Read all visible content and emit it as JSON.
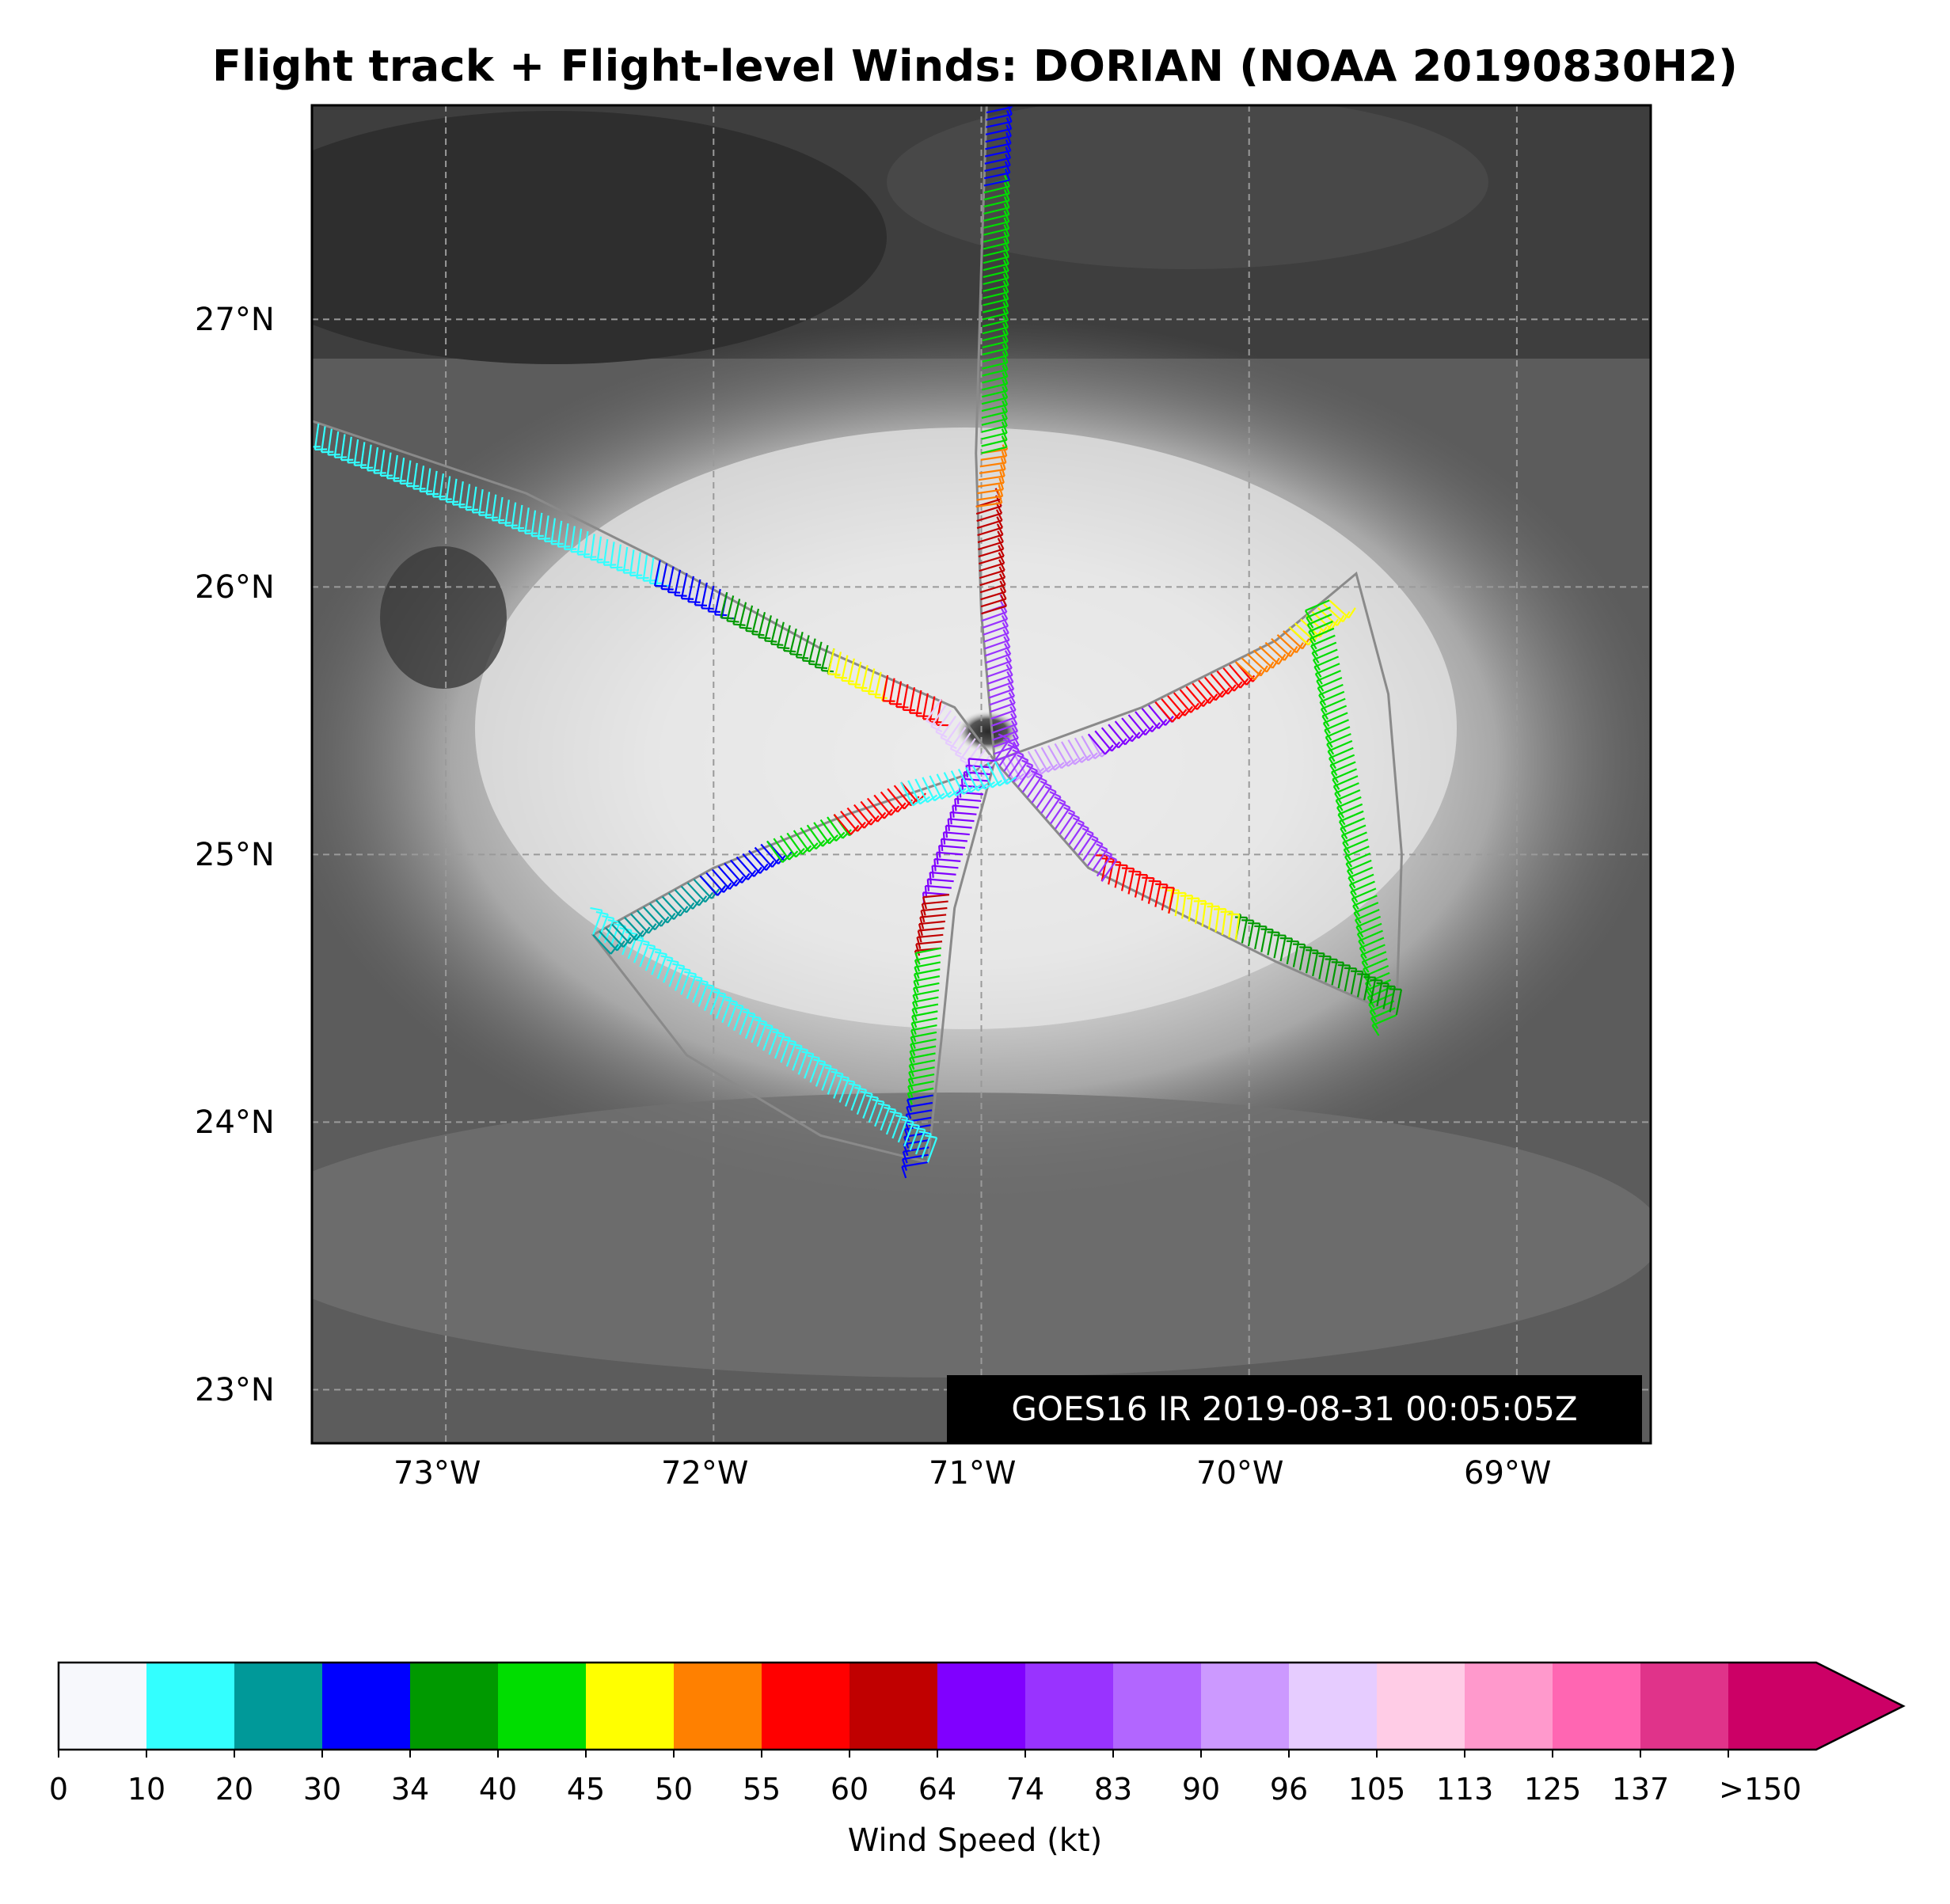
{
  "title": "Flight track + Flight-level Winds: DORIAN (NOAA 20190830H2)",
  "map": {
    "lon_range": [
      -73.5,
      -68.5
    ],
    "lat_range": [
      22.8,
      27.8
    ],
    "lat_labels": [
      "27°N",
      "26°N",
      "25°N",
      "24°N",
      "23°N"
    ],
    "lon_labels": [
      "73°W",
      "72°W",
      "71°W",
      "70°W",
      "69°W"
    ],
    "gridlines": "dashed",
    "background": "grayscale infrared satellite image",
    "storm_center": {
      "lon": -70.95,
      "lat": 25.35
    },
    "stamp": "GOES16 IR 2019-08-31 00:05:05Z"
  },
  "flight_track": [
    {
      "lon": -73.5,
      "lat": 26.62
    },
    {
      "lon": -72.7,
      "lat": 26.35
    },
    {
      "lon": -72.2,
      "lat": 26.1
    },
    {
      "lon": -71.6,
      "lat": 25.77
    },
    {
      "lon": -71.1,
      "lat": 25.55
    },
    {
      "lon": -70.95,
      "lat": 25.35
    },
    {
      "lon": -70.4,
      "lat": 25.55
    },
    {
      "lon": -69.9,
      "lat": 25.8
    },
    {
      "lon": -69.6,
      "lat": 26.05
    },
    {
      "lon": -69.48,
      "lat": 25.6
    },
    {
      "lon": -69.43,
      "lat": 25.0
    },
    {
      "lon": -69.45,
      "lat": 24.4
    },
    {
      "lon": -69.9,
      "lat": 24.6
    },
    {
      "lon": -70.6,
      "lat": 24.95
    },
    {
      "lon": -70.95,
      "lat": 25.35
    },
    {
      "lon": -71.1,
      "lat": 24.8
    },
    {
      "lon": -71.15,
      "lat": 24.3
    },
    {
      "lon": -71.2,
      "lat": 23.85
    },
    {
      "lon": -71.6,
      "lat": 23.95
    },
    {
      "lon": -72.1,
      "lat": 24.25
    },
    {
      "lon": -72.45,
      "lat": 24.7
    },
    {
      "lon": -72.0,
      "lat": 24.95
    },
    {
      "lon": -71.5,
      "lat": 25.15
    },
    {
      "lon": -71.05,
      "lat": 25.3
    },
    {
      "lon": -70.95,
      "lat": 25.35
    },
    {
      "lon": -71.0,
      "lat": 25.9
    },
    {
      "lon": -71.02,
      "lat": 26.5
    },
    {
      "lon": -71.0,
      "lat": 27.2
    },
    {
      "lon": -70.98,
      "lat": 27.8
    }
  ],
  "wind_segments": [
    {
      "from": [
        -73.5,
        26.62
      ],
      "to": [
        -72.2,
        26.1
      ],
      "kt": 15
    },
    {
      "from": [
        -72.2,
        26.1
      ],
      "to": [
        -71.95,
        25.98
      ],
      "kt": 30
    },
    {
      "from": [
        -71.95,
        25.98
      ],
      "to": [
        -71.55,
        25.77
      ],
      "kt": 37
    },
    {
      "from": [
        -71.55,
        25.77
      ],
      "to": [
        -71.35,
        25.67
      ],
      "kt": 47
    },
    {
      "from": [
        -71.35,
        25.67
      ],
      "to": [
        -71.15,
        25.58
      ],
      "kt": 58
    },
    {
      "from": [
        -71.15,
        25.58
      ],
      "to": [
        -70.95,
        25.35
      ],
      "kt": 100
    },
    {
      "from": [
        -70.95,
        25.35
      ],
      "to": [
        -70.6,
        25.45
      ],
      "kt": 93
    },
    {
      "from": [
        -70.6,
        25.45
      ],
      "to": [
        -70.35,
        25.57
      ],
      "kt": 70
    },
    {
      "from": [
        -70.35,
        25.57
      ],
      "to": [
        -70.05,
        25.72
      ],
      "kt": 58
    },
    {
      "from": [
        -70.05,
        25.72
      ],
      "to": [
        -69.85,
        25.85
      ],
      "kt": 52
    },
    {
      "from": [
        -69.85,
        25.85
      ],
      "to": [
        -69.7,
        25.95
      ],
      "kt": 47
    },
    {
      "from": [
        -69.7,
        25.95
      ],
      "to": [
        -69.45,
        24.4
      ],
      "kt": 42
    },
    {
      "from": [
        -69.45,
        24.4
      ],
      "to": [
        -70.05,
        24.68
      ],
      "kt": 37
    },
    {
      "from": [
        -70.05,
        24.68
      ],
      "to": [
        -70.3,
        24.78
      ],
      "kt": 47
    },
    {
      "from": [
        -70.3,
        24.78
      ],
      "to": [
        -70.55,
        24.9
      ],
      "kt": 58
    },
    {
      "from": [
        -70.55,
        24.9
      ],
      "to": [
        -70.95,
        25.35
      ],
      "kt": 78
    },
    {
      "from": [
        -70.95,
        25.35
      ],
      "to": [
        -71.12,
        24.85
      ],
      "kt": 68
    },
    {
      "from": [
        -71.12,
        24.85
      ],
      "to": [
        -71.15,
        24.65
      ],
      "kt": 60
    },
    {
      "from": [
        -71.15,
        24.65
      ],
      "to": [
        -71.18,
        24.1
      ],
      "kt": 40
    },
    {
      "from": [
        -71.18,
        24.1
      ],
      "to": [
        -71.2,
        23.85
      ],
      "kt": 31
    },
    {
      "from": [
        -71.2,
        23.85
      ],
      "to": [
        -72.45,
        24.7
      ],
      "kt": 18
    },
    {
      "from": [
        -72.45,
        24.7
      ],
      "to": [
        -72.05,
        24.92
      ],
      "kt": 25
    },
    {
      "from": [
        -72.05,
        24.92
      ],
      "to": [
        -71.8,
        25.05
      ],
      "kt": 32
    },
    {
      "from": [
        -71.8,
        25.05
      ],
      "to": [
        -71.55,
        25.15
      ],
      "kt": 42
    },
    {
      "from": [
        -71.55,
        25.15
      ],
      "to": [
        -71.3,
        25.27
      ],
      "kt": 57
    },
    {
      "from": [
        -71.3,
        25.27
      ],
      "to": [
        -70.95,
        25.35
      ],
      "kt": 15
    },
    {
      "from": [
        -70.95,
        25.35
      ],
      "to": [
        -71.0,
        25.9
      ],
      "kt": 78
    },
    {
      "from": [
        -71.0,
        25.9
      ],
      "to": [
        -71.02,
        26.3
      ],
      "kt": 60
    },
    {
      "from": [
        -71.02,
        26.3
      ],
      "to": [
        -71.0,
        26.5
      ],
      "kt": 52
    },
    {
      "from": [
        -71.0,
        26.5
      ],
      "to": [
        -70.99,
        27.5
      ],
      "kt": 42
    },
    {
      "from": [
        -70.99,
        27.5
      ],
      "to": [
        -70.98,
        27.8
      ],
      "kt": 30
    }
  ],
  "colorbar": {
    "label": "Wind Speed (kt)",
    "ticks": [
      "0",
      "10",
      "20",
      "30",
      "34",
      "40",
      "45",
      "50",
      "55",
      "60",
      "64",
      "74",
      "83",
      "90",
      "96",
      "105",
      "113",
      "125",
      "137",
      ">150"
    ],
    "bins": [
      {
        "min": 0,
        "color": "#f7f8fc"
      },
      {
        "min": 10,
        "color": "#33ffff"
      },
      {
        "min": 20,
        "color": "#009999"
      },
      {
        "min": 30,
        "color": "#0000ff"
      },
      {
        "min": 34,
        "color": "#009900"
      },
      {
        "min": 40,
        "color": "#00dd00"
      },
      {
        "min": 45,
        "color": "#ffff00"
      },
      {
        "min": 50,
        "color": "#ff8000"
      },
      {
        "min": 55,
        "color": "#ff0000"
      },
      {
        "min": 60,
        "color": "#c00000"
      },
      {
        "min": 64,
        "color": "#8000ff"
      },
      {
        "min": 74,
        "color": "#9933ff"
      },
      {
        "min": 83,
        "color": "#b266ff"
      },
      {
        "min": 90,
        "color": "#cc99ff"
      },
      {
        "min": 96,
        "color": "#e6ccff"
      },
      {
        "min": 105,
        "color": "#ffcce6"
      },
      {
        "min": 113,
        "color": "#ff99cc"
      },
      {
        "min": 125,
        "color": "#ff66b2"
      },
      {
        "min": 137,
        "color": "#e0338a"
      },
      {
        "min": 150,
        "color": "#cc0066"
      }
    ]
  }
}
